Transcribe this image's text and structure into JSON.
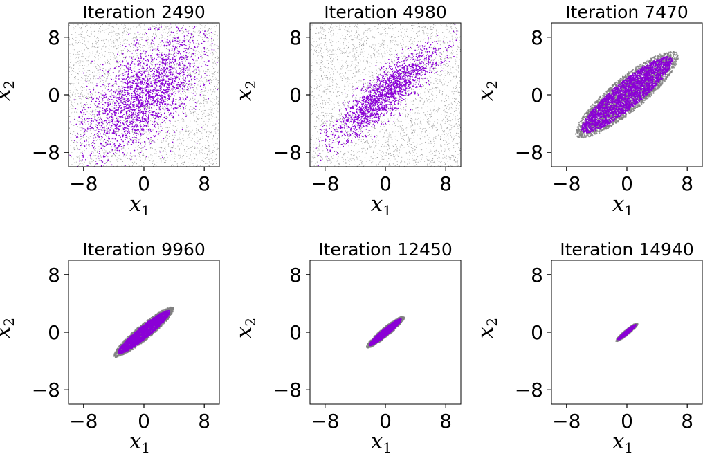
{
  "figure": {
    "rows": 2,
    "cols": 3,
    "colors": {
      "background_samples": "#808080",
      "samples": "#8b00d6"
    }
  },
  "chart_data": [
    {
      "type": "scatter",
      "title": "Iteration 2490",
      "xlabel": "x",
      "xlabel_sub": "1",
      "ylabel": "x",
      "ylabel_sub": "2",
      "xlim": [
        -10,
        10
      ],
      "ylim": [
        -10,
        10
      ],
      "xticks": [
        -8,
        0,
        8
      ],
      "xtick_labels": [
        "−8",
        "0",
        "8"
      ],
      "yticks": [
        -8,
        0,
        8
      ],
      "ytick_labels": [
        "−8",
        "0",
        "8"
      ],
      "grid": false,
      "series": [
        {
          "kind": "background",
          "color": "#808080",
          "distribution": "uniform",
          "extent": [
            -10,
            10
          ],
          "n_points": 3500
        },
        {
          "kind": "samples",
          "color": "#8b00d6",
          "distribution": "correlated-gaussian",
          "center": [
            0,
            0
          ],
          "sd_major": 5.2,
          "sd_minor": 2.5,
          "angle_deg": 45,
          "n_points": 2200
        }
      ]
    },
    {
      "type": "scatter",
      "title": "Iteration 4980",
      "xlabel": "x",
      "xlabel_sub": "1",
      "ylabel": "x",
      "ylabel_sub": "2",
      "xlim": [
        -10,
        10
      ],
      "ylim": [
        -10,
        10
      ],
      "xticks": [
        -8,
        0,
        8
      ],
      "xtick_labels": [
        "−8",
        "0",
        "8"
      ],
      "yticks": [
        -8,
        0,
        8
      ],
      "ytick_labels": [
        "−8",
        "0",
        "8"
      ],
      "grid": false,
      "series": [
        {
          "kind": "background",
          "color": "#808080",
          "distribution": "uniform",
          "extent": [
            -10,
            10
          ],
          "n_points": 3500
        },
        {
          "kind": "samples",
          "color": "#8b00d6",
          "distribution": "correlated-gaussian",
          "center": [
            0,
            0
          ],
          "sd_major": 4.6,
          "sd_minor": 1.2,
          "angle_deg": 42,
          "n_points": 1800
        }
      ]
    },
    {
      "type": "scatter",
      "title": "Iteration 7470",
      "xlabel": "x",
      "xlabel_sub": "1",
      "ylabel": "x",
      "ylabel_sub": "2",
      "xlim": [
        -10,
        10
      ],
      "ylim": [
        -10,
        10
      ],
      "xticks": [
        -8,
        0,
        8
      ],
      "xtick_labels": [
        "−8",
        "0",
        "8"
      ],
      "yticks": [
        -8,
        0,
        8
      ],
      "ytick_labels": [
        "−8",
        "0",
        "8"
      ],
      "grid": false,
      "series": [
        {
          "kind": "background",
          "color": "#808080",
          "distribution": "ellipse",
          "center": [
            0,
            0
          ],
          "semi_major": 8.8,
          "semi_minor": 2.3,
          "angle_deg": 41,
          "n_points": 2500
        },
        {
          "kind": "samples",
          "color": "#8b00d6",
          "distribution": "ellipse",
          "center": [
            0,
            0
          ],
          "semi_major": 7.8,
          "semi_minor": 1.8,
          "angle_deg": 41,
          "n_points": 2500
        }
      ]
    },
    {
      "type": "scatter",
      "title": "Iteration 9960",
      "xlabel": "x",
      "xlabel_sub": "1",
      "ylabel": "x",
      "ylabel_sub": "2",
      "xlim": [
        -10,
        10
      ],
      "ylim": [
        -10,
        10
      ],
      "xticks": [
        -8,
        0,
        8
      ],
      "xtick_labels": [
        "−8",
        "0",
        "8"
      ],
      "yticks": [
        -8,
        0,
        8
      ],
      "ytick_labels": [
        "−8",
        "0",
        "8"
      ],
      "grid": false,
      "series": [
        {
          "kind": "background",
          "color": "#808080",
          "distribution": "ellipse",
          "center": [
            0,
            0
          ],
          "semi_major": 5.2,
          "semi_minor": 1.0,
          "angle_deg": 41,
          "n_points": 1600
        },
        {
          "kind": "samples",
          "color": "#8b00d6",
          "distribution": "ellipse",
          "center": [
            0,
            0
          ],
          "semi_major": 4.5,
          "semi_minor": 0.8,
          "angle_deg": 41,
          "n_points": 1800
        }
      ]
    },
    {
      "type": "scatter",
      "title": "Iteration 12450",
      "xlabel": "x",
      "xlabel_sub": "1",
      "ylabel": "x",
      "ylabel_sub": "2",
      "xlim": [
        -10,
        10
      ],
      "ylim": [
        -10,
        10
      ],
      "xticks": [
        -8,
        0,
        8
      ],
      "xtick_labels": [
        "−8",
        "0",
        "8"
      ],
      "yticks": [
        -8,
        0,
        8
      ],
      "ytick_labels": [
        "−8",
        "0",
        "8"
      ],
      "grid": false,
      "series": [
        {
          "kind": "background",
          "color": "#808080",
          "distribution": "ellipse",
          "center": [
            0,
            0
          ],
          "semi_major": 3.3,
          "semi_minor": 0.6,
          "angle_deg": 41,
          "n_points": 1000
        },
        {
          "kind": "samples",
          "color": "#8b00d6",
          "distribution": "ellipse",
          "center": [
            0,
            0
          ],
          "semi_major": 2.8,
          "semi_minor": 0.45,
          "angle_deg": 41,
          "n_points": 1200
        }
      ]
    },
    {
      "type": "scatter",
      "title": "Iteration 14940",
      "xlabel": "x",
      "xlabel_sub": "1",
      "ylabel": "x",
      "ylabel_sub": "2",
      "xlim": [
        -10,
        10
      ],
      "ylim": [
        -10,
        10
      ],
      "xticks": [
        -8,
        0,
        8
      ],
      "xtick_labels": [
        "−8",
        "0",
        "8"
      ],
      "yticks": [
        -8,
        0,
        8
      ],
      "ytick_labels": [
        "−8",
        "0",
        "8"
      ],
      "grid": false,
      "series": [
        {
          "kind": "background",
          "color": "#808080",
          "distribution": "ellipse",
          "center": [
            0,
            0
          ],
          "semi_major": 1.9,
          "semi_minor": 0.35,
          "angle_deg": 41,
          "n_points": 600
        },
        {
          "kind": "samples",
          "color": "#8b00d6",
          "distribution": "ellipse",
          "center": [
            0,
            0
          ],
          "semi_major": 1.6,
          "semi_minor": 0.25,
          "angle_deg": 41,
          "n_points": 700
        }
      ]
    }
  ]
}
